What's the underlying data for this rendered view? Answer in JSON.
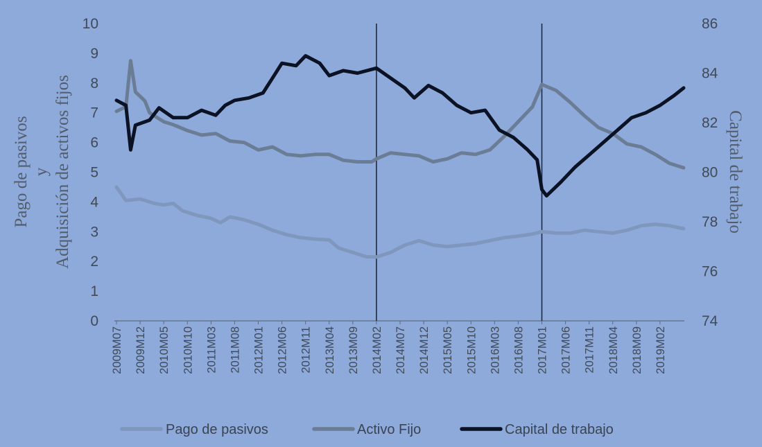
{
  "chart_data": {
    "type": "line",
    "ylabel_left": [
      "Pago de pasivos",
      "y",
      "Adquisición de activos fijos"
    ],
    "ylabel_right": "Capital de trabajo",
    "ylim_left": [
      0,
      10
    ],
    "ylim_right": [
      74,
      86
    ],
    "yticks_left": [
      "0",
      "1",
      "2",
      "3",
      "4",
      "5",
      "6",
      "7",
      "8",
      "9",
      "10"
    ],
    "yticks_right": [
      "74",
      "76",
      "78",
      "80",
      "82",
      "84",
      "86"
    ],
    "x_range": [
      "2009M07",
      "2019M07"
    ],
    "x_tick_labels": [
      "2009M07",
      "2009M12",
      "2010M05",
      "2010M10",
      "2011M03",
      "2011M08",
      "2012M01",
      "2012M06",
      "2012M11",
      "2013M04",
      "2013M09",
      "2014M02",
      "2014M07",
      "2014M12",
      "2015M05",
      "2015M10",
      "2016M03",
      "2016M08",
      "2017M01",
      "2017M06",
      "2017M11",
      "2018M04",
      "2018M09",
      "2019M02"
    ],
    "vertical_lines": [
      "2014M02",
      "2017M01"
    ],
    "grid": false,
    "legend_position": "bottom",
    "series": [
      {
        "name": "Pago de pasivos",
        "axis": "left",
        "color": "#7f97bd",
        "points": [
          [
            "2009M07",
            4.5
          ],
          [
            "2009M09",
            4.05
          ],
          [
            "2009M12",
            4.1
          ],
          [
            "2010M03",
            3.95
          ],
          [
            "2010M05",
            3.9
          ],
          [
            "2010M07",
            3.95
          ],
          [
            "2010M09",
            3.7
          ],
          [
            "2010M12",
            3.55
          ],
          [
            "2011M03",
            3.45
          ],
          [
            "2011M05",
            3.3
          ],
          [
            "2011M07",
            3.5
          ],
          [
            "2011M10",
            3.4
          ],
          [
            "2012M01",
            3.25
          ],
          [
            "2012M04",
            3.05
          ],
          [
            "2012M07",
            2.9
          ],
          [
            "2012M10",
            2.8
          ],
          [
            "2013M01",
            2.75
          ],
          [
            "2013M04",
            2.72
          ],
          [
            "2013M06",
            2.45
          ],
          [
            "2013M09",
            2.3
          ],
          [
            "2013M12",
            2.15
          ],
          [
            "2014M02",
            2.15
          ],
          [
            "2014M05",
            2.3
          ],
          [
            "2014M08",
            2.55
          ],
          [
            "2014M11",
            2.7
          ],
          [
            "2015M02",
            2.55
          ],
          [
            "2015M05",
            2.5
          ],
          [
            "2015M08",
            2.55
          ],
          [
            "2015M11",
            2.6
          ],
          [
            "2016M02",
            2.7
          ],
          [
            "2016M05",
            2.8
          ],
          [
            "2016M08",
            2.85
          ],
          [
            "2016M11",
            2.92
          ],
          [
            "2017M01",
            3.0
          ],
          [
            "2017M04",
            2.95
          ],
          [
            "2017M07",
            2.95
          ],
          [
            "2017M10",
            3.05
          ],
          [
            "2018M01",
            3.0
          ],
          [
            "2018M04",
            2.95
          ],
          [
            "2018M07",
            3.05
          ],
          [
            "2018M10",
            3.2
          ],
          [
            "2019M01",
            3.25
          ],
          [
            "2019M04",
            3.2
          ],
          [
            "2019M07",
            3.1
          ]
        ]
      },
      {
        "name": "Activo Fijo",
        "axis": "left",
        "color": "#6b7c95",
        "points": [
          [
            "2009M07",
            7.05
          ],
          [
            "2009M09",
            7.2
          ],
          [
            "2009M10",
            8.75
          ],
          [
            "2009M11",
            7.7
          ],
          [
            "2010M01",
            7.4
          ],
          [
            "2010M02",
            7.0
          ],
          [
            "2010M05",
            6.7
          ],
          [
            "2010M07",
            6.6
          ],
          [
            "2010M10",
            6.4
          ],
          [
            "2011M01",
            6.25
          ],
          [
            "2011M04",
            6.3
          ],
          [
            "2011M07",
            6.05
          ],
          [
            "2011M10",
            6.0
          ],
          [
            "2012M01",
            5.75
          ],
          [
            "2012M04",
            5.85
          ],
          [
            "2012M07",
            5.6
          ],
          [
            "2012M10",
            5.55
          ],
          [
            "2013M01",
            5.6
          ],
          [
            "2013M04",
            5.6
          ],
          [
            "2013M07",
            5.4
          ],
          [
            "2013M10",
            5.35
          ],
          [
            "2014M01",
            5.35
          ],
          [
            "2014M02",
            5.45
          ],
          [
            "2014M05",
            5.65
          ],
          [
            "2014M08",
            5.6
          ],
          [
            "2014M11",
            5.55
          ],
          [
            "2015M02",
            5.35
          ],
          [
            "2015M05",
            5.45
          ],
          [
            "2015M08",
            5.65
          ],
          [
            "2015M11",
            5.6
          ],
          [
            "2016M02",
            5.75
          ],
          [
            "2016M05",
            6.2
          ],
          [
            "2016M08",
            6.7
          ],
          [
            "2016M11",
            7.2
          ],
          [
            "2017M01",
            7.95
          ],
          [
            "2017M04",
            7.75
          ],
          [
            "2017M07",
            7.35
          ],
          [
            "2017M10",
            6.9
          ],
          [
            "2018M01",
            6.5
          ],
          [
            "2018M04",
            6.3
          ],
          [
            "2018M07",
            5.95
          ],
          [
            "2018M10",
            5.85
          ],
          [
            "2019M01",
            5.6
          ],
          [
            "2019M04",
            5.3
          ],
          [
            "2019M07",
            5.15
          ]
        ]
      },
      {
        "name": "Capital de trabajo",
        "axis": "right",
        "color": "#0b1224",
        "points": [
          [
            "2009M07",
            82.9
          ],
          [
            "2009M09",
            82.7
          ],
          [
            "2009M10",
            80.9
          ],
          [
            "2009M11",
            81.9
          ],
          [
            "2010M02",
            82.1
          ],
          [
            "2010M04",
            82.6
          ],
          [
            "2010M07",
            82.2
          ],
          [
            "2010M10",
            82.2
          ],
          [
            "2011M01",
            82.5
          ],
          [
            "2011M04",
            82.3
          ],
          [
            "2011M06",
            82.7
          ],
          [
            "2011M08",
            82.9
          ],
          [
            "2011M11",
            83.0
          ],
          [
            "2012M02",
            83.2
          ],
          [
            "2012M04",
            83.8
          ],
          [
            "2012M06",
            84.4
          ],
          [
            "2012M09",
            84.3
          ],
          [
            "2012M11",
            84.7
          ],
          [
            "2013M02",
            84.4
          ],
          [
            "2013M04",
            83.9
          ],
          [
            "2013M07",
            84.1
          ],
          [
            "2013M10",
            84.0
          ],
          [
            "2014M02",
            84.2
          ],
          [
            "2014M05",
            83.8
          ],
          [
            "2014M08",
            83.4
          ],
          [
            "2014M10",
            83.0
          ],
          [
            "2015M01",
            83.5
          ],
          [
            "2015M04",
            83.2
          ],
          [
            "2015M07",
            82.7
          ],
          [
            "2015M10",
            82.4
          ],
          [
            "2016M01",
            82.5
          ],
          [
            "2016M04",
            81.7
          ],
          [
            "2016M07",
            81.4
          ],
          [
            "2016M10",
            80.9
          ],
          [
            "2016M12",
            80.5
          ],
          [
            "2017M01",
            79.3
          ],
          [
            "2017M02",
            79.05
          ],
          [
            "2017M05",
            79.6
          ],
          [
            "2017M08",
            80.2
          ],
          [
            "2017M11",
            80.7
          ],
          [
            "2018M02",
            81.2
          ],
          [
            "2018M05",
            81.7
          ],
          [
            "2018M08",
            82.2
          ],
          [
            "2018M11",
            82.4
          ],
          [
            "2019M02",
            82.7
          ],
          [
            "2019M05",
            83.1
          ],
          [
            "2019M07",
            83.4
          ]
        ]
      }
    ]
  }
}
